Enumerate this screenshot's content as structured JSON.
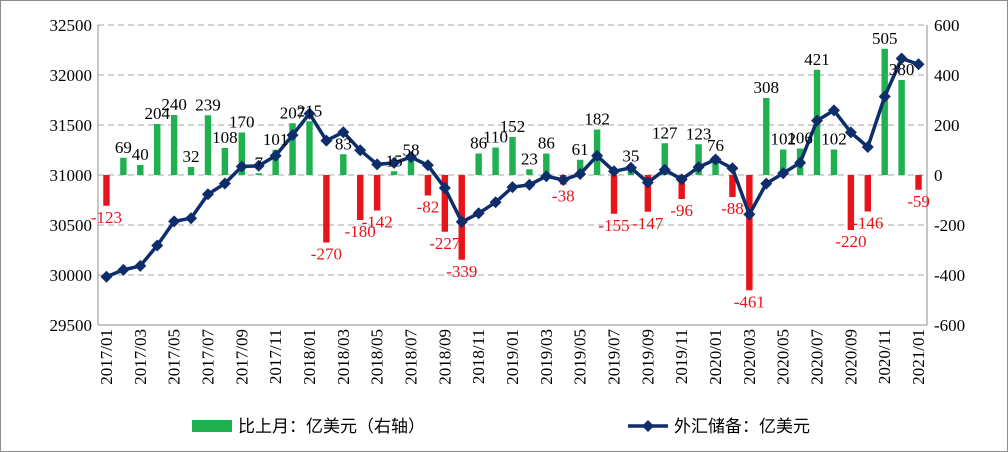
{
  "chart_data": {
    "type": "bar+line",
    "title": "",
    "x": [
      "2017/01",
      "2017/02",
      "2017/03",
      "2017/04",
      "2017/05",
      "2017/06",
      "2017/07",
      "2017/08",
      "2017/09",
      "2017/10",
      "2017/11",
      "2017/12",
      "2018/01",
      "2018/02",
      "2018/03",
      "2018/04",
      "2018/05",
      "2018/06",
      "2018/07",
      "2018/08",
      "2018/09",
      "2018/10",
      "2018/11",
      "2018/12",
      "2019/01",
      "2019/02",
      "2019/03",
      "2019/04",
      "2019/05",
      "2019/06",
      "2019/07",
      "2019/08",
      "2019/09",
      "2019/10",
      "2019/11",
      "2019/12",
      "2020/01",
      "2020/02",
      "2020/03",
      "2020/04",
      "2020/05",
      "2020/06",
      "2020/07",
      "2020/08",
      "2020/09",
      "2020/10",
      "2020/11",
      "2020/12",
      "2021/01"
    ],
    "x_tick_labels": [
      "2017/01",
      "2017/03",
      "2017/05",
      "2017/07",
      "2017/09",
      "2017/11",
      "2018/01",
      "2018/03",
      "2018/05",
      "2018/07",
      "2018/09",
      "2018/11",
      "2019/01",
      "2019/03",
      "2019/05",
      "2019/07",
      "2019/09",
      "2019/11",
      "2020/01",
      "2020/03",
      "2020/05",
      "2020/07",
      "2020/09",
      "2020/11",
      "2021/01"
    ],
    "left_axis": {
      "ylim": [
        29500,
        32500
      ],
      "ticks": [
        "29500",
        "30000",
        "30500",
        "31000",
        "31500",
        "32000",
        "32500"
      ]
    },
    "right_axis": {
      "ylim": [
        -600,
        600
      ],
      "ticks": [
        "-600",
        "-400",
        "-200",
        "0",
        "200",
        "400",
        "600"
      ]
    },
    "grid": "horizontal dashed",
    "legend_position": "bottom",
    "series": [
      {
        "name": "比上月：亿美元（右轴）",
        "type": "bar",
        "axis": "right",
        "color_positive": "#20b050",
        "color_negative": "#e8141a",
        "values": [
          -123,
          69,
          40,
          204,
          240,
          32,
          239,
          108,
          170,
          7,
          101,
          207,
          215,
          -270,
          83,
          -180,
          -142,
          15,
          58,
          -82,
          -227,
          -339,
          86,
          110,
          152,
          23,
          86,
          -38,
          61,
          182,
          -155,
          35,
          -147,
          127,
          -96,
          123,
          76,
          -88,
          -461,
          308,
          102,
          106,
          421,
          102,
          -220,
          -146,
          505,
          380,
          -59
        ],
        "labels": [
          "-123",
          "69",
          "40",
          "204",
          "240",
          "32",
          "239",
          "108",
          "170",
          "7",
          "101",
          "207",
          "215",
          "-270",
          "83",
          "-180",
          "-142",
          "15",
          "58",
          "-82",
          "-227",
          "-339",
          "86",
          "110",
          "152",
          "23",
          "86",
          "-38",
          "61",
          "182",
          "-155",
          "35",
          "-147",
          "127",
          "-96",
          "123",
          "76",
          "-88",
          "-461",
          "308",
          "102",
          "106",
          "421",
          "102",
          "-220",
          "-146",
          "505",
          "380",
          "-59"
        ]
      },
      {
        "name": "外汇储备：亿美元",
        "type": "line",
        "axis": "left",
        "color": "#0d2d6b",
        "values": [
          29982,
          30051,
          30091,
          30295,
          30536,
          30568,
          30807,
          30915,
          31085,
          31092,
          31193,
          31399,
          31614,
          31344,
          31428,
          31248,
          31106,
          31121,
          31179,
          31097,
          30870,
          30531,
          30617,
          30727,
          30879,
          30902,
          30988,
          30950,
          31010,
          31192,
          31037,
          31072,
          30925,
          31052,
          30956,
          31079,
          31155,
          31067,
          30606,
          30914,
          31017,
          31123,
          31544,
          31646,
          31426,
          31280,
          31785,
          32165,
          32107
        ]
      }
    ]
  }
}
